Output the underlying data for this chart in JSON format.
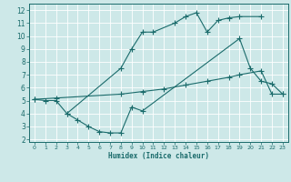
{
  "title": "",
  "xlabel": "Humidex (Indice chaleur)",
  "bg_color": "#cde8e8",
  "line_color": "#1a6b6b",
  "grid_color": "#b0d0d0",
  "xlim": [
    -0.5,
    23.5
  ],
  "ylim": [
    1.8,
    12.5
  ],
  "xticks": [
    0,
    1,
    2,
    3,
    4,
    5,
    6,
    7,
    8,
    9,
    10,
    11,
    12,
    13,
    14,
    15,
    16,
    17,
    18,
    19,
    20,
    21,
    22,
    23
  ],
  "yticks": [
    2,
    3,
    4,
    5,
    6,
    7,
    8,
    9,
    10,
    11,
    12
  ],
  "line1_x": [
    0,
    1,
    2,
    3,
    8,
    9,
    10,
    11,
    13,
    14,
    15,
    16,
    17,
    18,
    19,
    21
  ],
  "line1_y": [
    5.1,
    5.0,
    5.0,
    4.0,
    7.5,
    9.0,
    10.3,
    10.3,
    11.0,
    11.5,
    11.8,
    10.3,
    11.2,
    11.4,
    11.5,
    11.5
  ],
  "line2_x": [
    0,
    2,
    8,
    10,
    12,
    14,
    16,
    18,
    19,
    21,
    22,
    23
  ],
  "line2_y": [
    5.1,
    5.2,
    5.5,
    5.7,
    5.9,
    6.2,
    6.5,
    6.8,
    7.0,
    7.3,
    5.5,
    5.5
  ],
  "line3_x": [
    3,
    4,
    5,
    6,
    7,
    8,
    9,
    10,
    19,
    20,
    21,
    22,
    23
  ],
  "line3_y": [
    4.0,
    3.5,
    3.0,
    2.6,
    2.5,
    2.5,
    4.5,
    4.2,
    9.8,
    7.5,
    6.5,
    6.3,
    5.5
  ]
}
